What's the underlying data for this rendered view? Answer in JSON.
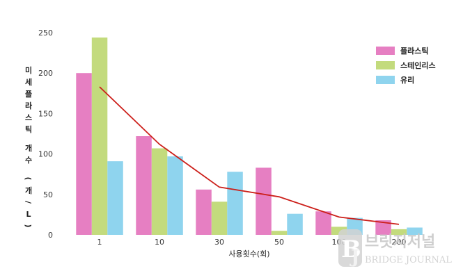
{
  "chart_data": {
    "type": "bar",
    "categories": [
      "1",
      "10",
      "30",
      "50",
      "100",
      "200"
    ],
    "series": [
      {
        "name": "플라스틱",
        "color": "#e67fc2",
        "values": [
          200,
          122,
          56,
          83,
          29,
          18
        ]
      },
      {
        "name": "스테인리스",
        "color": "#c3db7d",
        "values": [
          244,
          107,
          41,
          5,
          10,
          7
        ]
      },
      {
        "name": "유리",
        "color": "#8fd4ee",
        "values": [
          91,
          97,
          78,
          26,
          21,
          9
        ]
      }
    ],
    "trend_line": {
      "color": "#cc1f1a",
      "values": [
        183,
        112,
        59,
        47,
        22,
        13
      ]
    },
    "xlabel": "사용횟수(회)",
    "ylabel": "미세플라스틱 개수 (개/L)",
    "y_ticks": [
      "0",
      "50",
      "100",
      "150",
      "200",
      "250"
    ],
    "ylim": [
      0,
      250
    ],
    "grid": false,
    "legend_position": "top-right"
  },
  "watermark": {
    "logo": "BJ",
    "title": "브릿지저널",
    "subtitle": "BRIDGE JOURNAL"
  }
}
